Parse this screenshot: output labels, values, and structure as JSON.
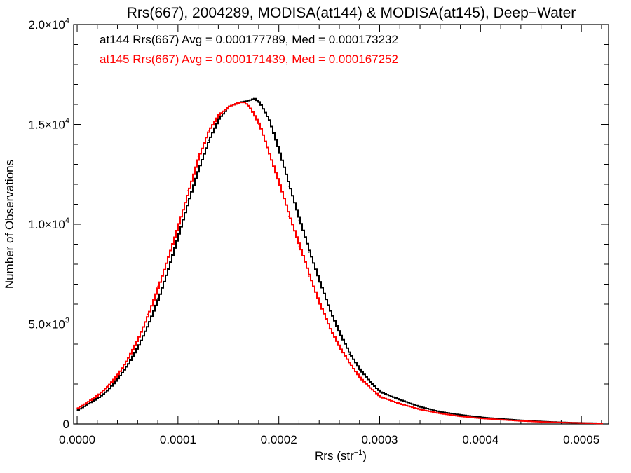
{
  "chart_data": {
    "type": "line",
    "title": "Rrs(667), 2004289, MODISA(at144) & MODISA(at145), Deep−Water",
    "xlabel": "Rrs (str",
    "xlabel_sup": "−1",
    "xlabel_end": ")",
    "ylabel": "Number of Observations",
    "xlim": [
      -3.5e-06,
      0.000527
    ],
    "ylim": [
      0,
      20000
    ],
    "x_ticks": [
      {
        "value": 0.0,
        "label": "0.0000"
      },
      {
        "value": 0.0001,
        "label": "0.0001"
      },
      {
        "value": 0.0002,
        "label": "0.0002"
      },
      {
        "value": 0.0003,
        "label": "0.0003"
      },
      {
        "value": 0.0004,
        "label": "0.0004"
      },
      {
        "value": 0.0005,
        "label": "0.0005"
      }
    ],
    "y_ticks": [
      {
        "value": 0,
        "mant": "0",
        "exp": ""
      },
      {
        "value": 5000,
        "mant": "5.0×10",
        "exp": "3"
      },
      {
        "value": 10000,
        "mant": "1.0×10",
        "exp": "4"
      },
      {
        "value": 15000,
        "mant": "1.5×10",
        "exp": "4"
      },
      {
        "value": 20000,
        "mant": "2.0×10",
        "exp": "4"
      }
    ],
    "annotations": [
      {
        "text": "at144 Rrs(667) Avg = 0.000177789, Med = 0.000173232",
        "color": "#000000"
      },
      {
        "text": "at145 Rrs(667) Avg = 0.000171439, Med = 0.000167252",
        "color": "#ff0000"
      }
    ],
    "series": [
      {
        "color": "#000000",
        "x": [
          0.0,
          1e-05,
          2e-05,
          3e-05,
          4e-05,
          5e-05,
          6e-05,
          7e-05,
          8e-05,
          9e-05,
          0.0001,
          0.00011,
          0.00012,
          0.00013,
          0.00014,
          0.00015,
          0.00016,
          0.00017,
          0.000175,
          0.00018,
          0.00019,
          0.0002,
          0.00021,
          0.00022,
          0.00023,
          0.00024,
          0.00025,
          0.00026,
          0.00027,
          0.00028,
          0.00029,
          0.0003,
          0.00032,
          0.00034,
          0.00036,
          0.00038,
          0.0004,
          0.00042,
          0.00044,
          0.00046,
          0.00048,
          0.0005,
          0.00052
        ],
        "y": [
          700,
          1000,
          1300,
          1700,
          2300,
          3000,
          3900,
          5000,
          6300,
          7800,
          9500,
          11200,
          12800,
          14200,
          15300,
          15900,
          16100,
          16200,
          16300,
          16100,
          15200,
          13600,
          11900,
          10200,
          8600,
          7100,
          5700,
          4500,
          3500,
          2700,
          2100,
          1600,
          1200,
          850,
          600,
          450,
          330,
          250,
          180,
          120,
          80,
          50,
          30
        ]
      },
      {
        "color": "#ff0000",
        "x": [
          0.0,
          1e-05,
          2e-05,
          3e-05,
          4e-05,
          5e-05,
          6e-05,
          7e-05,
          8e-05,
          9e-05,
          0.0001,
          0.00011,
          0.00012,
          0.00013,
          0.00014,
          0.00015,
          0.00016,
          0.000165,
          0.00017,
          0.00018,
          0.00019,
          0.0002,
          0.00021,
          0.00022,
          0.00023,
          0.00024,
          0.00025,
          0.00026,
          0.00027,
          0.00028,
          0.00029,
          0.0003,
          0.00032,
          0.00034,
          0.00036,
          0.00038,
          0.0004,
          0.00042,
          0.00044,
          0.00046,
          0.00048,
          0.0005,
          0.00052
        ],
        "y": [
          800,
          1100,
          1450,
          1900,
          2500,
          3300,
          4300,
          5500,
          6900,
          8400,
          10000,
          11700,
          13400,
          14700,
          15500,
          15900,
          16100,
          16100,
          15900,
          15000,
          13500,
          12000,
          10400,
          8900,
          7400,
          6000,
          4800,
          3800,
          3000,
          2300,
          1800,
          1350,
          1000,
          720,
          520,
          380,
          280,
          210,
          150,
          100,
          70,
          45,
          25
        ]
      }
    ]
  }
}
